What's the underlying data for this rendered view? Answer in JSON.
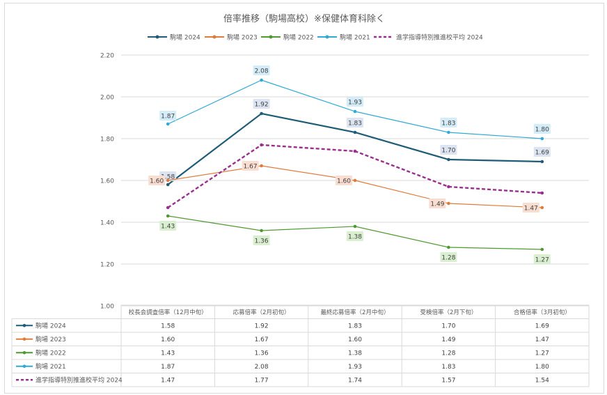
{
  "chart_data": {
    "type": "line",
    "title": "倍率推移（駒場高校）※保健体育科除く",
    "categories": [
      "校長会調査倍率（12月中旬）",
      "応募倍率（2月初旬）",
      "最終応募倍率（2月中旬）",
      "受検倍率（2月下旬）",
      "合格倍率（3月初旬）"
    ],
    "ylim": [
      1.0,
      2.2
    ],
    "yticks": [
      "1.00",
      "1.20",
      "1.40",
      "1.60",
      "1.80",
      "2.00",
      "2.20"
    ],
    "grid": true,
    "legend_position": "top",
    "data_table": true,
    "series": [
      {
        "name": "駒場 2024",
        "values": [
          1.58,
          1.92,
          1.83,
          1.7,
          1.69
        ],
        "labels": [
          "1.58",
          "1.92",
          "1.83",
          "1.70",
          "1.69"
        ],
        "color": "#1f5c78",
        "label_bg": "#dbe4f0",
        "style": "solid",
        "show_labels": true
      },
      {
        "name": "駒場 2023",
        "values": [
          1.6,
          1.67,
          1.6,
          1.49,
          1.47
        ],
        "labels": [
          "1.60",
          "1.67",
          "1.60",
          "1.49",
          "1.47"
        ],
        "color": "#e07b39",
        "label_bg": "#f8ddd0",
        "style": "solid",
        "show_labels": true
      },
      {
        "name": "駒場 2022",
        "values": [
          1.43,
          1.36,
          1.38,
          1.28,
          1.27
        ],
        "labels": [
          "1.43",
          "1.36",
          "1.38",
          "1.28",
          "1.27"
        ],
        "color": "#4e9a2e",
        "label_bg": "#d9efd0",
        "style": "solid",
        "show_labels": true
      },
      {
        "name": "駒場 2021",
        "values": [
          1.87,
          2.08,
          1.93,
          1.83,
          1.8
        ],
        "labels": [
          "1.87",
          "2.08",
          "1.93",
          "1.83",
          "1.80"
        ],
        "color": "#2eaad4",
        "label_bg": "#d3ecf7",
        "style": "solid",
        "show_labels": true
      },
      {
        "name": "進学指導特別推進校平均 2024",
        "values": [
          1.47,
          1.77,
          1.74,
          1.57,
          1.54
        ],
        "labels": [
          "1.47",
          "1.77",
          "1.74",
          "1.57",
          "1.54"
        ],
        "color": "#9b2f8f",
        "label_bg": "",
        "style": "dashed",
        "show_labels": false
      }
    ]
  }
}
